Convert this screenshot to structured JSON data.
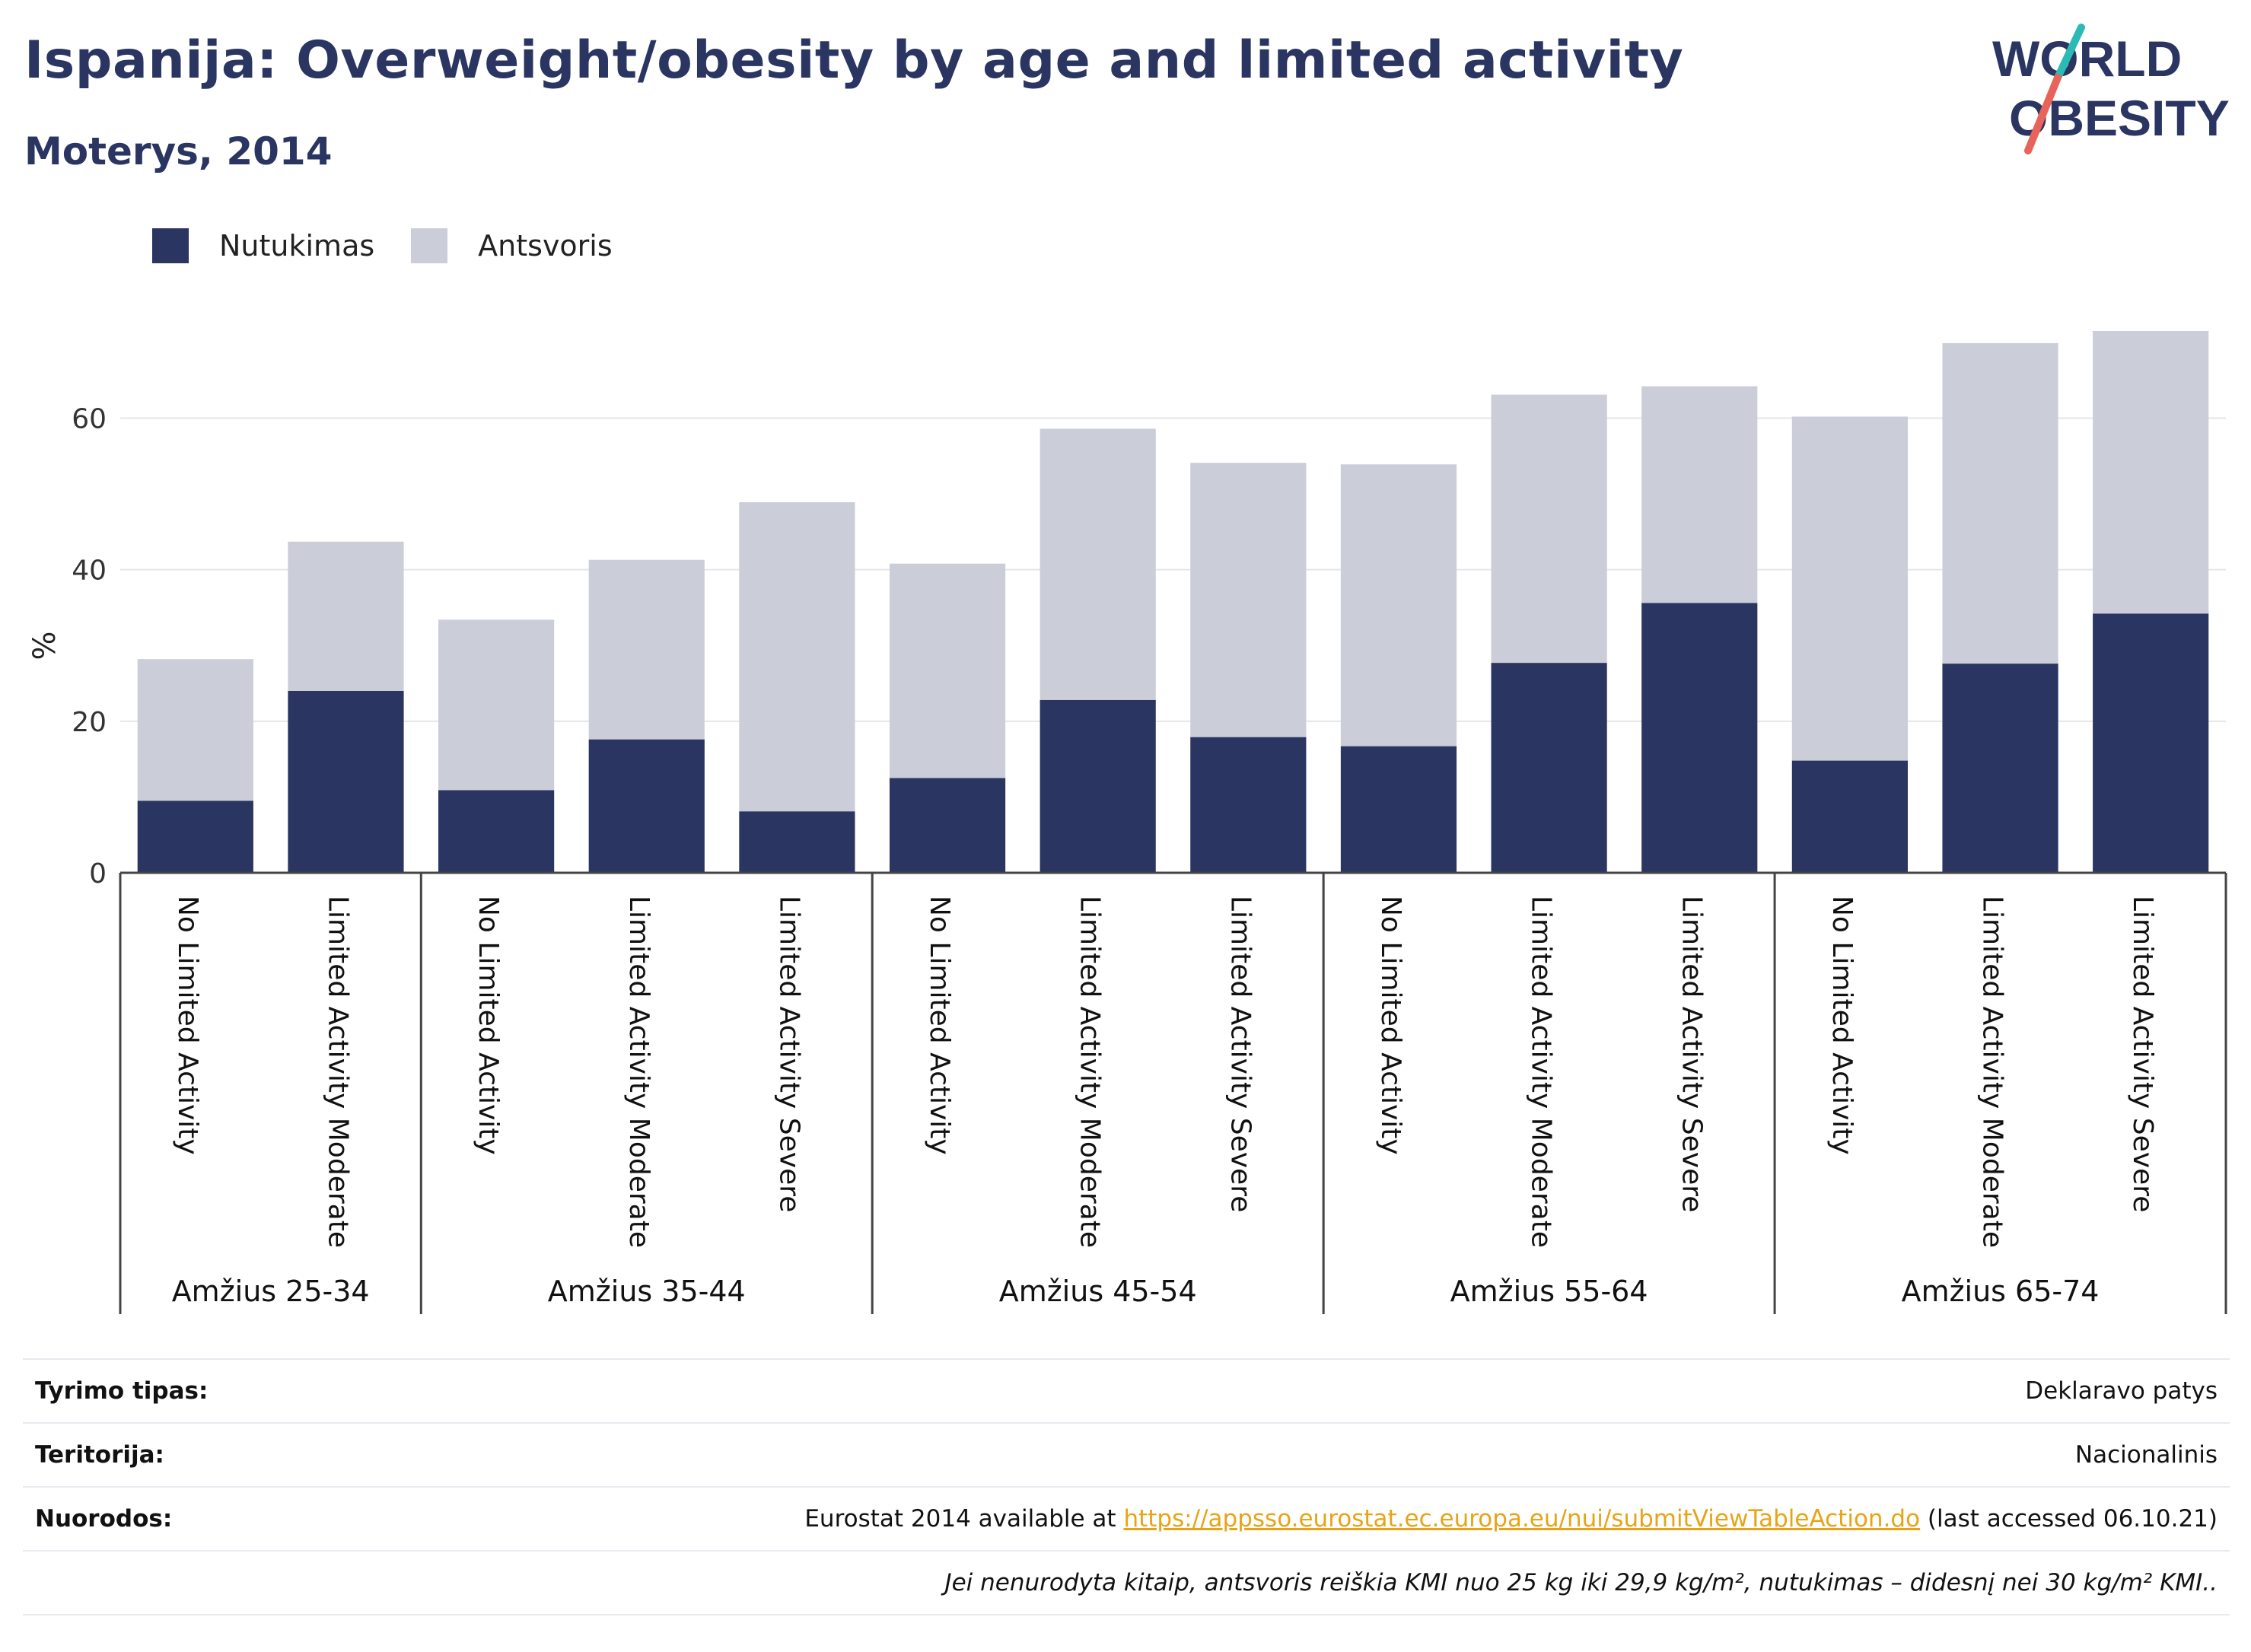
{
  "header": {
    "title": "Ispanija: Overweight/obesity by age and limited activity",
    "subtitle": "Moterys, 2014",
    "logo_line1": "WORLD",
    "logo_line2": "OBESITY"
  },
  "colors": {
    "obesity": "#2a3561",
    "overweight": "#cbcdd9",
    "axis": "#444444",
    "grid": "#e6e6ea",
    "title": "#2a3561",
    "link": "#e8a417",
    "logo_slash_teal": "#2bbbb4",
    "logo_slash_red": "#e8645a"
  },
  "legend": {
    "items": [
      {
        "label": "Nutukimas",
        "color": "#2a3561"
      },
      {
        "label": "Antsvoris",
        "color": "#cbcdd9"
      }
    ]
  },
  "chart_data": {
    "type": "bar",
    "stacked": true,
    "ylabel": "%",
    "xlabel": "",
    "ylim": [
      0,
      72
    ],
    "yticks": [
      0,
      20,
      40,
      60
    ],
    "grid": true,
    "legend_position": "top-left",
    "groups": [
      {
        "label": "Amžius 25-34",
        "categories": [
          "No Limited Activity",
          "Limited Activity Moderate"
        ]
      },
      {
        "label": "Amžius 35-44",
        "categories": [
          "No Limited Activity",
          "Limited Activity Moderate",
          "Limited Activity Severe"
        ]
      },
      {
        "label": "Amžius 45-54",
        "categories": [
          "No Limited Activity",
          "Limited Activity Moderate",
          "Limited Activity Severe"
        ]
      },
      {
        "label": "Amžius 55-64",
        "categories": [
          "No Limited Activity",
          "Limited Activity Moderate",
          "Limited Activity Severe"
        ]
      },
      {
        "label": "Amžius 65-74",
        "categories": [
          "No Limited Activity",
          "Limited Activity Moderate",
          "Limited Activity Severe"
        ]
      }
    ],
    "series": [
      {
        "name": "Nutukimas",
        "values": [
          9.5,
          24.0,
          10.9,
          17.6,
          8.1,
          12.5,
          22.8,
          17.9,
          16.7,
          27.7,
          35.6,
          14.8,
          27.6,
          34.2
        ]
      },
      {
        "name": "Antsvoris",
        "values": [
          18.7,
          19.7,
          22.5,
          23.7,
          40.8,
          28.3,
          35.8,
          36.2,
          37.2,
          35.4,
          28.6,
          45.4,
          42.3,
          37.3
        ]
      }
    ]
  },
  "footer": {
    "rows": [
      {
        "label": "Tyrimo tipas:",
        "value": "Deklaravo patys"
      },
      {
        "label": "Teritorija:",
        "value": "Nacionalinis"
      },
      {
        "label": "Nuorodos:",
        "value_prefix": "Eurostat 2014 available at ",
        "link": "https://appsso.eurostat.ec.europa.eu/nui/submitViewTableAction.do",
        "value_suffix": " (last accessed 06.10.21)"
      }
    ],
    "note": "Jei nenurodyta kitaip, antsvoris reiškia KMI nuo 25 kg iki 29,9 kg/m², nutukimas – didesnį nei 30 kg/m² KMI.."
  }
}
